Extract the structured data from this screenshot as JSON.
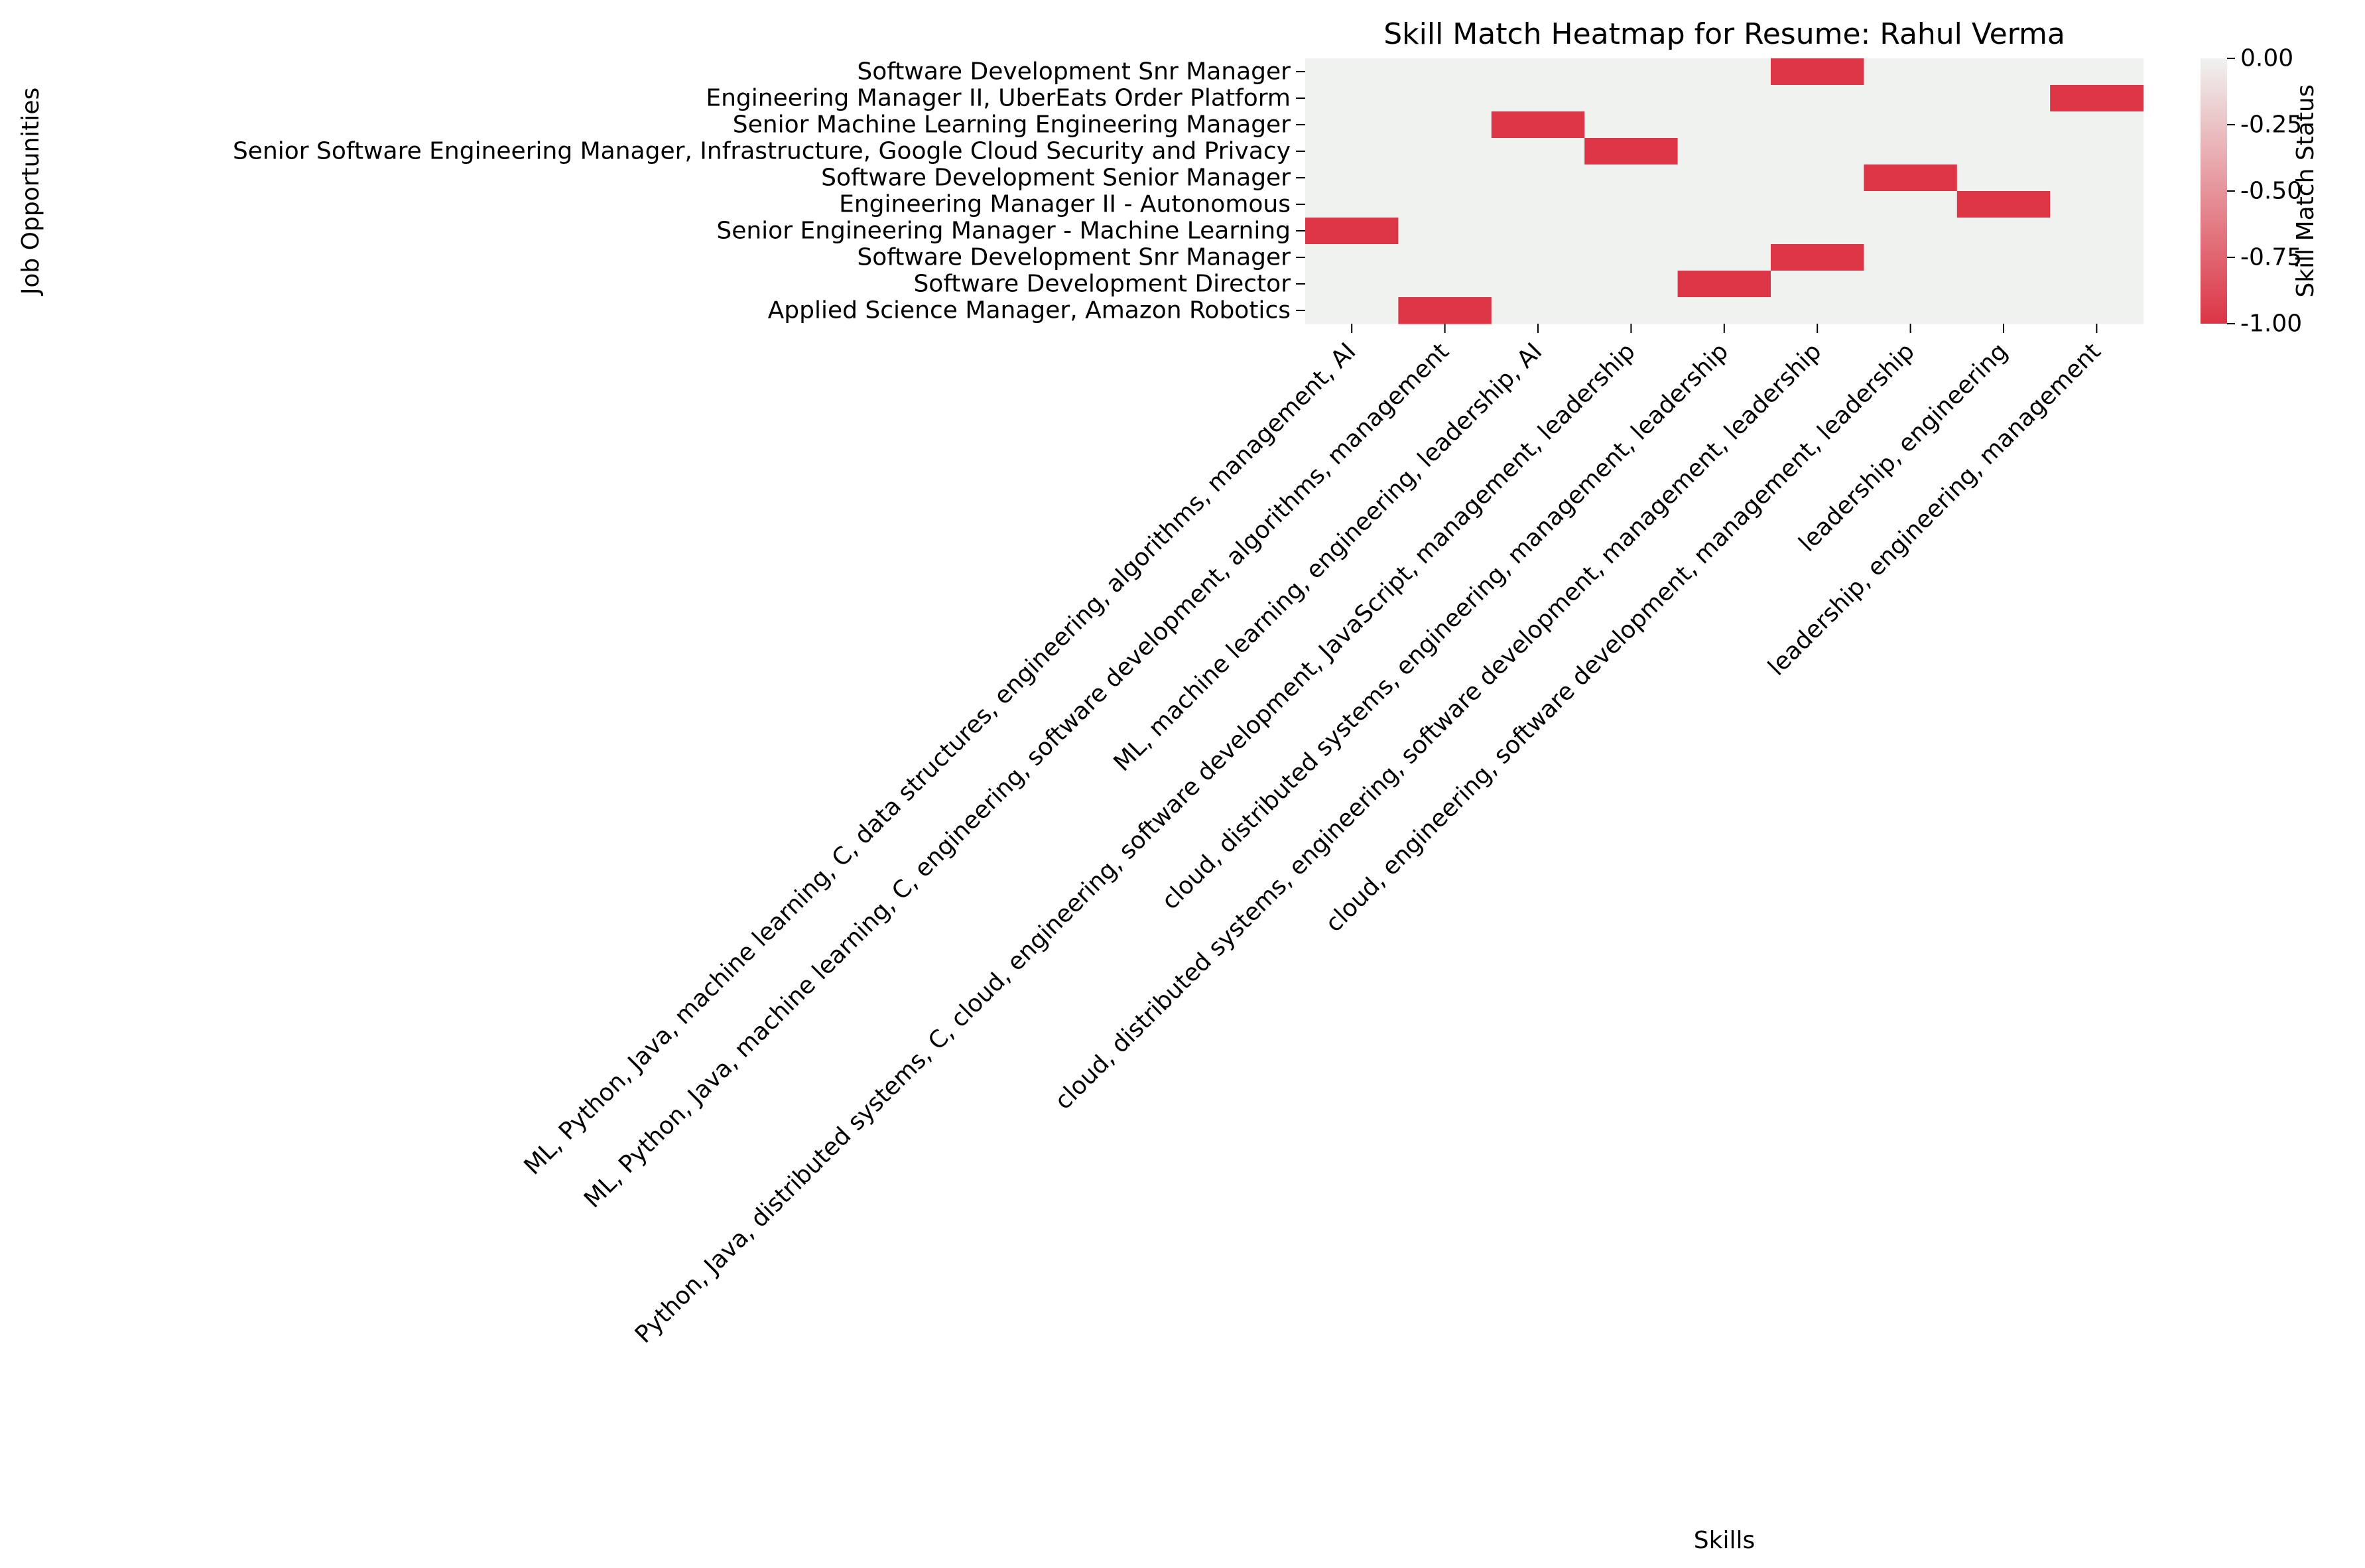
{
  "chart_data": {
    "type": "heatmap",
    "title": "Skill Match Heatmap for Resume: Rahul Verma",
    "xlabel": "Skills",
    "ylabel": "Job Opportunities",
    "rows": [
      "Software Development Snr Manager",
      "Engineering Manager II, UberEats Order Platform",
      "Senior Machine Learning Engineering Manager",
      "Senior Software Engineering Manager, Infrastructure, Google Cloud Security and Privacy",
      "Software Development Senior Manager",
      "Engineering Manager II - Autonomous",
      "Senior Engineering Manager - Machine Learning",
      "Software Development Snr Manager",
      "Software Development Director",
      "Applied Science Manager, Amazon Robotics"
    ],
    "columns": [
      "ML, Python, Java, machine learning, C, data structures, engineering, algorithms, management, AI",
      "ML, Python, Java, machine learning, C, engineering, software development, algorithms, management",
      "ML, machine learning, engineering, leadership, AI",
      "Python, Java, distributed systems, C, cloud, engineering, software development, JavaScript, management, leadership",
      "cloud, distributed systems, engineering, management, leadership",
      "cloud, distributed systems, engineering, software development, management, leadership",
      "cloud, engineering, software development, management, leadership",
      "leadership, engineering",
      "leadership, engineering, management"
    ],
    "values": [
      [
        0,
        0,
        0,
        0,
        0,
        -1,
        0,
        0,
        0
      ],
      [
        0,
        0,
        0,
        0,
        0,
        0,
        0,
        0,
        -1
      ],
      [
        0,
        0,
        -1,
        0,
        0,
        0,
        0,
        0,
        0
      ],
      [
        0,
        0,
        0,
        -1,
        0,
        0,
        0,
        0,
        0
      ],
      [
        0,
        0,
        0,
        0,
        0,
        0,
        -1,
        0,
        0
      ],
      [
        0,
        0,
        0,
        0,
        0,
        0,
        0,
        -1,
        0
      ],
      [
        -1,
        0,
        0,
        0,
        0,
        0,
        0,
        0,
        0
      ],
      [
        0,
        0,
        0,
        0,
        0,
        -1,
        0,
        0,
        0
      ],
      [
        0,
        0,
        0,
        0,
        -1,
        0,
        0,
        0,
        0
      ],
      [
        0,
        -1,
        0,
        0,
        0,
        0,
        0,
        0,
        0
      ]
    ],
    "colorbar": {
      "label": "Skill Match Status",
      "vmin": -1.0,
      "vmax": 0.0,
      "ticks": [
        "0.00",
        "-0.25",
        "-0.50",
        "-0.75",
        "-1.00"
      ],
      "low_color": "#dc3545",
      "high_color": "#f0f2f0"
    },
    "grid": false,
    "legend": "colorbar-right"
  }
}
